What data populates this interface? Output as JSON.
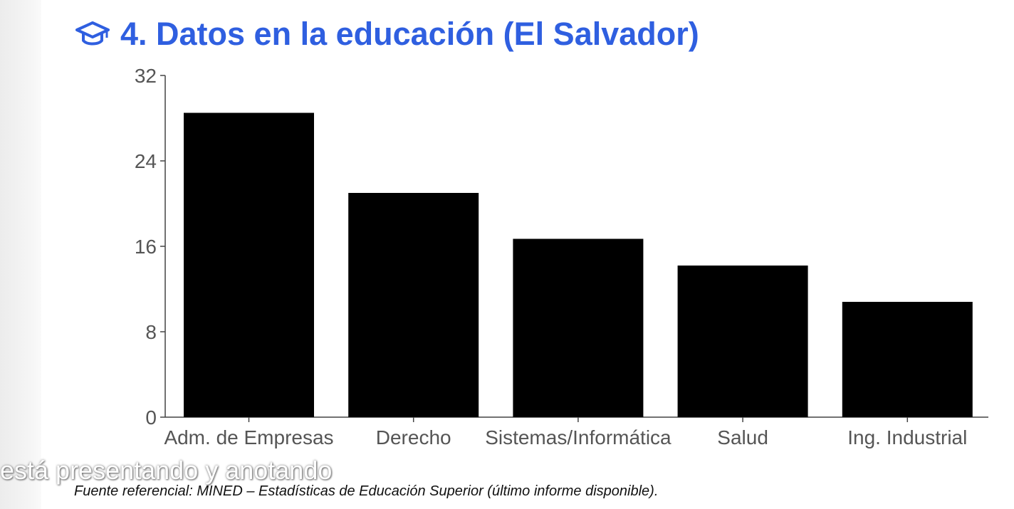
{
  "slide": {
    "title": "4. Datos en la educación (El Salvador)",
    "icon": "graduation-cap-icon",
    "title_color": "#2f5fe0"
  },
  "caption": {
    "text": "está presentando y anotando"
  },
  "source": {
    "text": "Fuente referencial: MINED – Estadísticas de Educación Superior (último informe disponible)."
  },
  "chart_data": {
    "type": "bar",
    "categories": [
      "Adm. de Empresas",
      "Derecho",
      "Sistemas/Informática",
      "Salud",
      "Ing. Industrial"
    ],
    "values": [
      28.5,
      21,
      16.7,
      14.2,
      10.8
    ],
    "title": "",
    "xlabel": "",
    "ylabel": "",
    "ylim": [
      0,
      32
    ],
    "yticks": [
      0,
      8,
      16,
      24,
      32
    ],
    "bar_color": "#000000",
    "grid": false,
    "legend": "none"
  }
}
